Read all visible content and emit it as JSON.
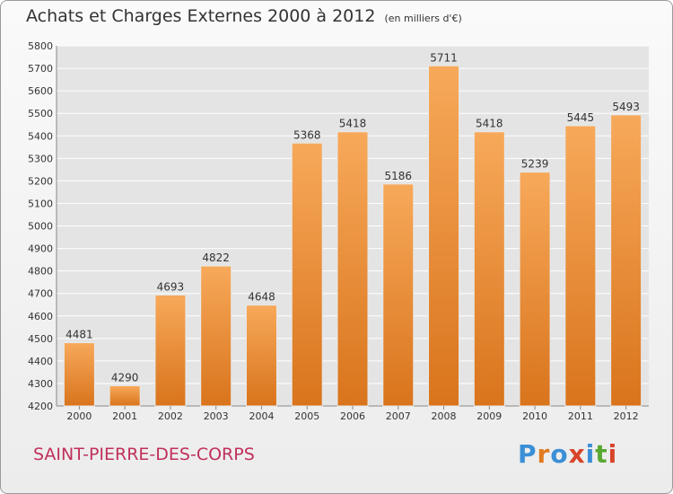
{
  "header": {
    "title": "Achats et Charges Externes 2000 à 2012",
    "unit": "(en milliers d'€)"
  },
  "footer": {
    "city": "SAINT-PIERRE-DES-CORPS",
    "logo_text": "Proxiti",
    "logo_colors": [
      "#3a8fd6",
      "#e07b20",
      "#3a8fd6",
      "#d8442a",
      "#3a8fd6",
      "#5aa832",
      "#d8442a"
    ]
  },
  "colors": {
    "bar_light": "#f7a95a",
    "bar_dark": "#d9741c",
    "grid": "#ffffff",
    "plot_bg": "#e4e4e4",
    "text": "#333333",
    "city": "#c0305a"
  },
  "chart_data": {
    "type": "bar",
    "title": "Achats et Charges Externes 2000 à 2012",
    "subtitle": "(en milliers d'€)",
    "categories": [
      "2000",
      "2001",
      "2002",
      "2003",
      "2004",
      "2005",
      "2006",
      "2007",
      "2008",
      "2009",
      "2010",
      "2011",
      "2012"
    ],
    "values": [
      4481,
      4290,
      4693,
      4822,
      4648,
      5368,
      5418,
      5186,
      5711,
      5418,
      5239,
      5445,
      5493
    ],
    "ylim": [
      4200,
      5800
    ],
    "yticks": [
      4200,
      4300,
      4400,
      4500,
      4600,
      4700,
      4800,
      4900,
      5000,
      5100,
      5200,
      5300,
      5400,
      5500,
      5600,
      5700,
      5800
    ],
    "grid": true,
    "data_labels": true
  }
}
